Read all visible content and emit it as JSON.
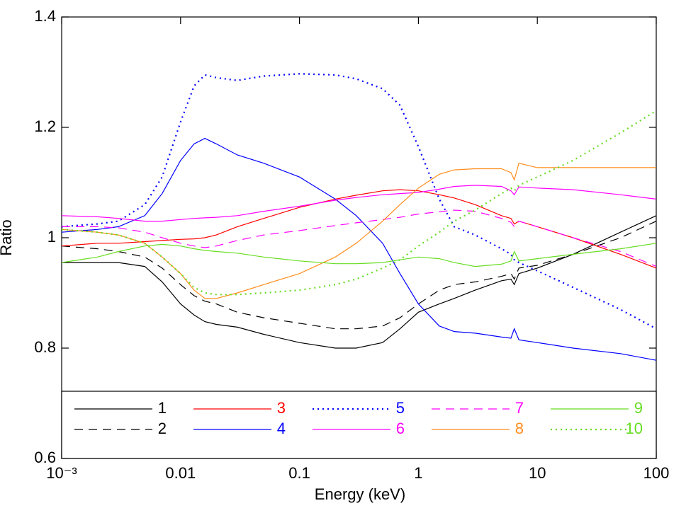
{
  "chart_data": {
    "type": "line",
    "xlabel": "Energy (keV)",
    "ylabel": "Ratio",
    "xlog": true,
    "x": [
      0.001,
      0.002,
      0.003,
      0.005,
      0.007,
      0.01,
      0.013,
      0.016,
      0.02,
      0.03,
      0.05,
      0.1,
      0.2,
      0.3,
      0.5,
      0.7,
      1,
      1.5,
      2,
      3,
      5,
      6,
      6.4,
      7,
      10,
      20,
      50,
      100
    ],
    "xlim": [
      0.001,
      100
    ],
    "xticks": [
      {
        "value": 0.001,
        "label": "10⁻³"
      },
      0.01,
      0.1,
      1,
      10,
      100
    ],
    "ylim": [
      0.6,
      1.4
    ],
    "yticks": [
      0.6,
      0.8,
      1,
      1.2,
      1.4
    ],
    "series": [
      {
        "name": "1",
        "color": "#000000",
        "dash": "solid",
        "values": [
          0.955,
          0.955,
          0.955,
          0.948,
          0.92,
          0.88,
          0.86,
          0.848,
          0.843,
          0.838,
          0.825,
          0.81,
          0.8,
          0.8,
          0.81,
          0.835,
          0.865,
          0.88,
          0.89,
          0.905,
          0.922,
          0.925,
          0.915,
          0.935,
          0.945,
          0.97,
          1.01,
          1.04
        ]
      },
      {
        "name": "2",
        "color": "#000000",
        "dash": "dashed",
        "values": [
          0.985,
          0.98,
          0.975,
          0.965,
          0.945,
          0.915,
          0.895,
          0.885,
          0.88,
          0.865,
          0.855,
          0.845,
          0.835,
          0.835,
          0.84,
          0.855,
          0.88,
          0.905,
          0.915,
          0.92,
          0.93,
          0.935,
          0.925,
          0.945,
          0.95,
          0.97,
          1.0,
          1.03
        ]
      },
      {
        "name": "3",
        "color": "#ff0000",
        "dash": "solid",
        "values": [
          0.985,
          0.99,
          0.99,
          0.993,
          0.995,
          0.997,
          0.998,
          1.0,
          1.005,
          1.02,
          1.035,
          1.055,
          1.07,
          1.077,
          1.085,
          1.087,
          1.085,
          1.078,
          1.072,
          1.06,
          1.04,
          1.035,
          1.025,
          1.03,
          1.02,
          1.0,
          0.97,
          0.945
        ]
      },
      {
        "name": "4",
        "color": "#0000ff",
        "dash": "solid",
        "values": [
          1.01,
          1.015,
          1.02,
          1.04,
          1.08,
          1.14,
          1.17,
          1.18,
          1.17,
          1.15,
          1.135,
          1.11,
          1.07,
          1.04,
          0.99,
          0.935,
          0.88,
          0.84,
          0.83,
          0.827,
          0.82,
          0.818,
          0.835,
          0.815,
          0.81,
          0.8,
          0.79,
          0.778
        ]
      },
      {
        "name": "5",
        "color": "#0000ff",
        "dash": "dotted",
        "values": [
          1.02,
          1.025,
          1.03,
          1.06,
          1.11,
          1.21,
          1.275,
          1.295,
          1.29,
          1.285,
          1.293,
          1.297,
          1.295,
          1.288,
          1.27,
          1.24,
          1.165,
          1.07,
          1.02,
          1.005,
          0.98,
          0.97,
          0.96,
          0.955,
          0.94,
          0.91,
          0.87,
          0.835
        ]
      },
      {
        "name": "6",
        "color": "#ff00ff",
        "dash": "solid",
        "values": [
          1.04,
          1.038,
          1.035,
          1.03,
          1.03,
          1.033,
          1.035,
          1.036,
          1.037,
          1.04,
          1.048,
          1.057,
          1.068,
          1.073,
          1.078,
          1.08,
          1.082,
          1.088,
          1.093,
          1.095,
          1.093,
          1.085,
          1.078,
          1.092,
          1.09,
          1.087,
          1.078,
          1.07
        ]
      },
      {
        "name": "7",
        "color": "#ff00ff",
        "dash": "dashed",
        "values": [
          1.02,
          1.02,
          1.018,
          1.01,
          1.0,
          0.99,
          0.985,
          0.982,
          0.985,
          0.995,
          1.005,
          1.013,
          1.022,
          1.027,
          1.033,
          1.037,
          1.043,
          1.047,
          1.05,
          1.048,
          1.035,
          1.028,
          1.02,
          1.03,
          1.02,
          1.0,
          0.975,
          0.948
        ]
      },
      {
        "name": "8",
        "color": "#ff8c1a",
        "dash": "solid",
        "values": [
          1.015,
          1.01,
          1.005,
          0.99,
          0.965,
          0.935,
          0.905,
          0.89,
          0.89,
          0.9,
          0.915,
          0.935,
          0.965,
          0.99,
          1.03,
          1.06,
          1.09,
          1.115,
          1.123,
          1.125,
          1.125,
          1.118,
          1.105,
          1.135,
          1.127,
          1.127,
          1.127,
          1.127
        ]
      },
      {
        "name": "9",
        "color": "#66dd22",
        "dash": "solid",
        "values": [
          0.955,
          0.965,
          0.975,
          0.985,
          0.988,
          0.985,
          0.98,
          0.977,
          0.975,
          0.972,
          0.965,
          0.958,
          0.953,
          0.953,
          0.955,
          0.96,
          0.965,
          0.962,
          0.955,
          0.948,
          0.952,
          0.958,
          0.975,
          0.958,
          0.962,
          0.97,
          0.98,
          0.99
        ]
      },
      {
        "name": "10",
        "color": "#66dd22",
        "dash": "dotted",
        "values": [
          1.015,
          1.01,
          1.005,
          0.99,
          0.965,
          0.935,
          0.91,
          0.9,
          0.897,
          0.897,
          0.9,
          0.905,
          0.915,
          0.925,
          0.945,
          0.96,
          0.985,
          1.01,
          1.03,
          1.05,
          1.08,
          1.09,
          1.085,
          1.095,
          1.11,
          1.14,
          1.19,
          1.23
        ]
      }
    ]
  }
}
